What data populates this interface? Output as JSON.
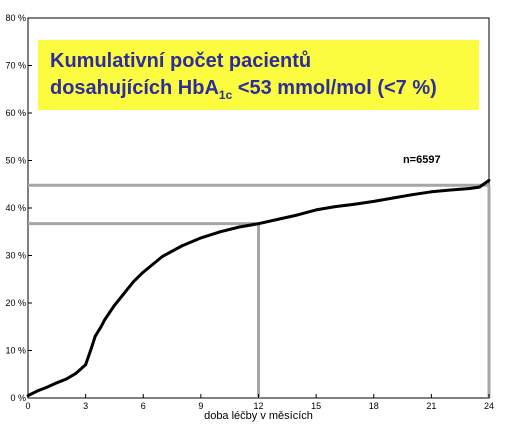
{
  "chart_data": {
    "type": "line",
    "title": {
      "line1": "Kumulativní počet pacientů",
      "line2_prefix": "dosahujících HbA",
      "line2_sub": "1c",
      "line2_suffix": " <53 mmol/mol (<7 %)"
    },
    "xlabel": "doba léčby v měsících",
    "ylabel": "",
    "xlim": [
      0,
      24
    ],
    "ylim": [
      0,
      80
    ],
    "x_ticks": [
      0,
      3,
      6,
      9,
      12,
      15,
      18,
      21,
      24
    ],
    "y_ticks": [
      0,
      10,
      20,
      30,
      40,
      50,
      60,
      70,
      80
    ],
    "y_tick_labels": [
      "0 %",
      "10 %",
      "20 %",
      "30 %",
      "40 %",
      "50 %",
      "60 %",
      "70 %",
      "80 %"
    ],
    "annotation": "n=6597",
    "series": [
      {
        "x": [
          0,
          0.5,
          1,
          1.5,
          2,
          2.5,
          3,
          3.3,
          3.5,
          3.8,
          4,
          4.5,
          5,
          5.5,
          6,
          7,
          8,
          9,
          10,
          11,
          12,
          13,
          14,
          15,
          16,
          17,
          18,
          19,
          20,
          21,
          22,
          23,
          23.5,
          24
        ],
        "y": [
          0.5,
          1.5,
          2.3,
          3.2,
          4,
          5.2,
          7,
          10.5,
          13,
          15,
          16.5,
          19.5,
          22,
          24.5,
          26.5,
          29.8,
          32,
          33.7,
          35,
          36,
          36.7,
          37.6,
          38.5,
          39.6,
          40.3,
          40.8,
          41.4,
          42.1,
          42.8,
          43.4,
          43.8,
          44.1,
          44.4,
          45.8
        ]
      }
    ],
    "reference_lines": [
      {
        "x": 12,
        "y": 36.7
      },
      {
        "x": 24,
        "y": 44.8
      }
    ],
    "grid": false,
    "colors": {
      "curve": "#000000",
      "reference": "#a6a6a6",
      "title_bg": "#fbfb3f",
      "title_text": "#2d2d9b"
    }
  }
}
